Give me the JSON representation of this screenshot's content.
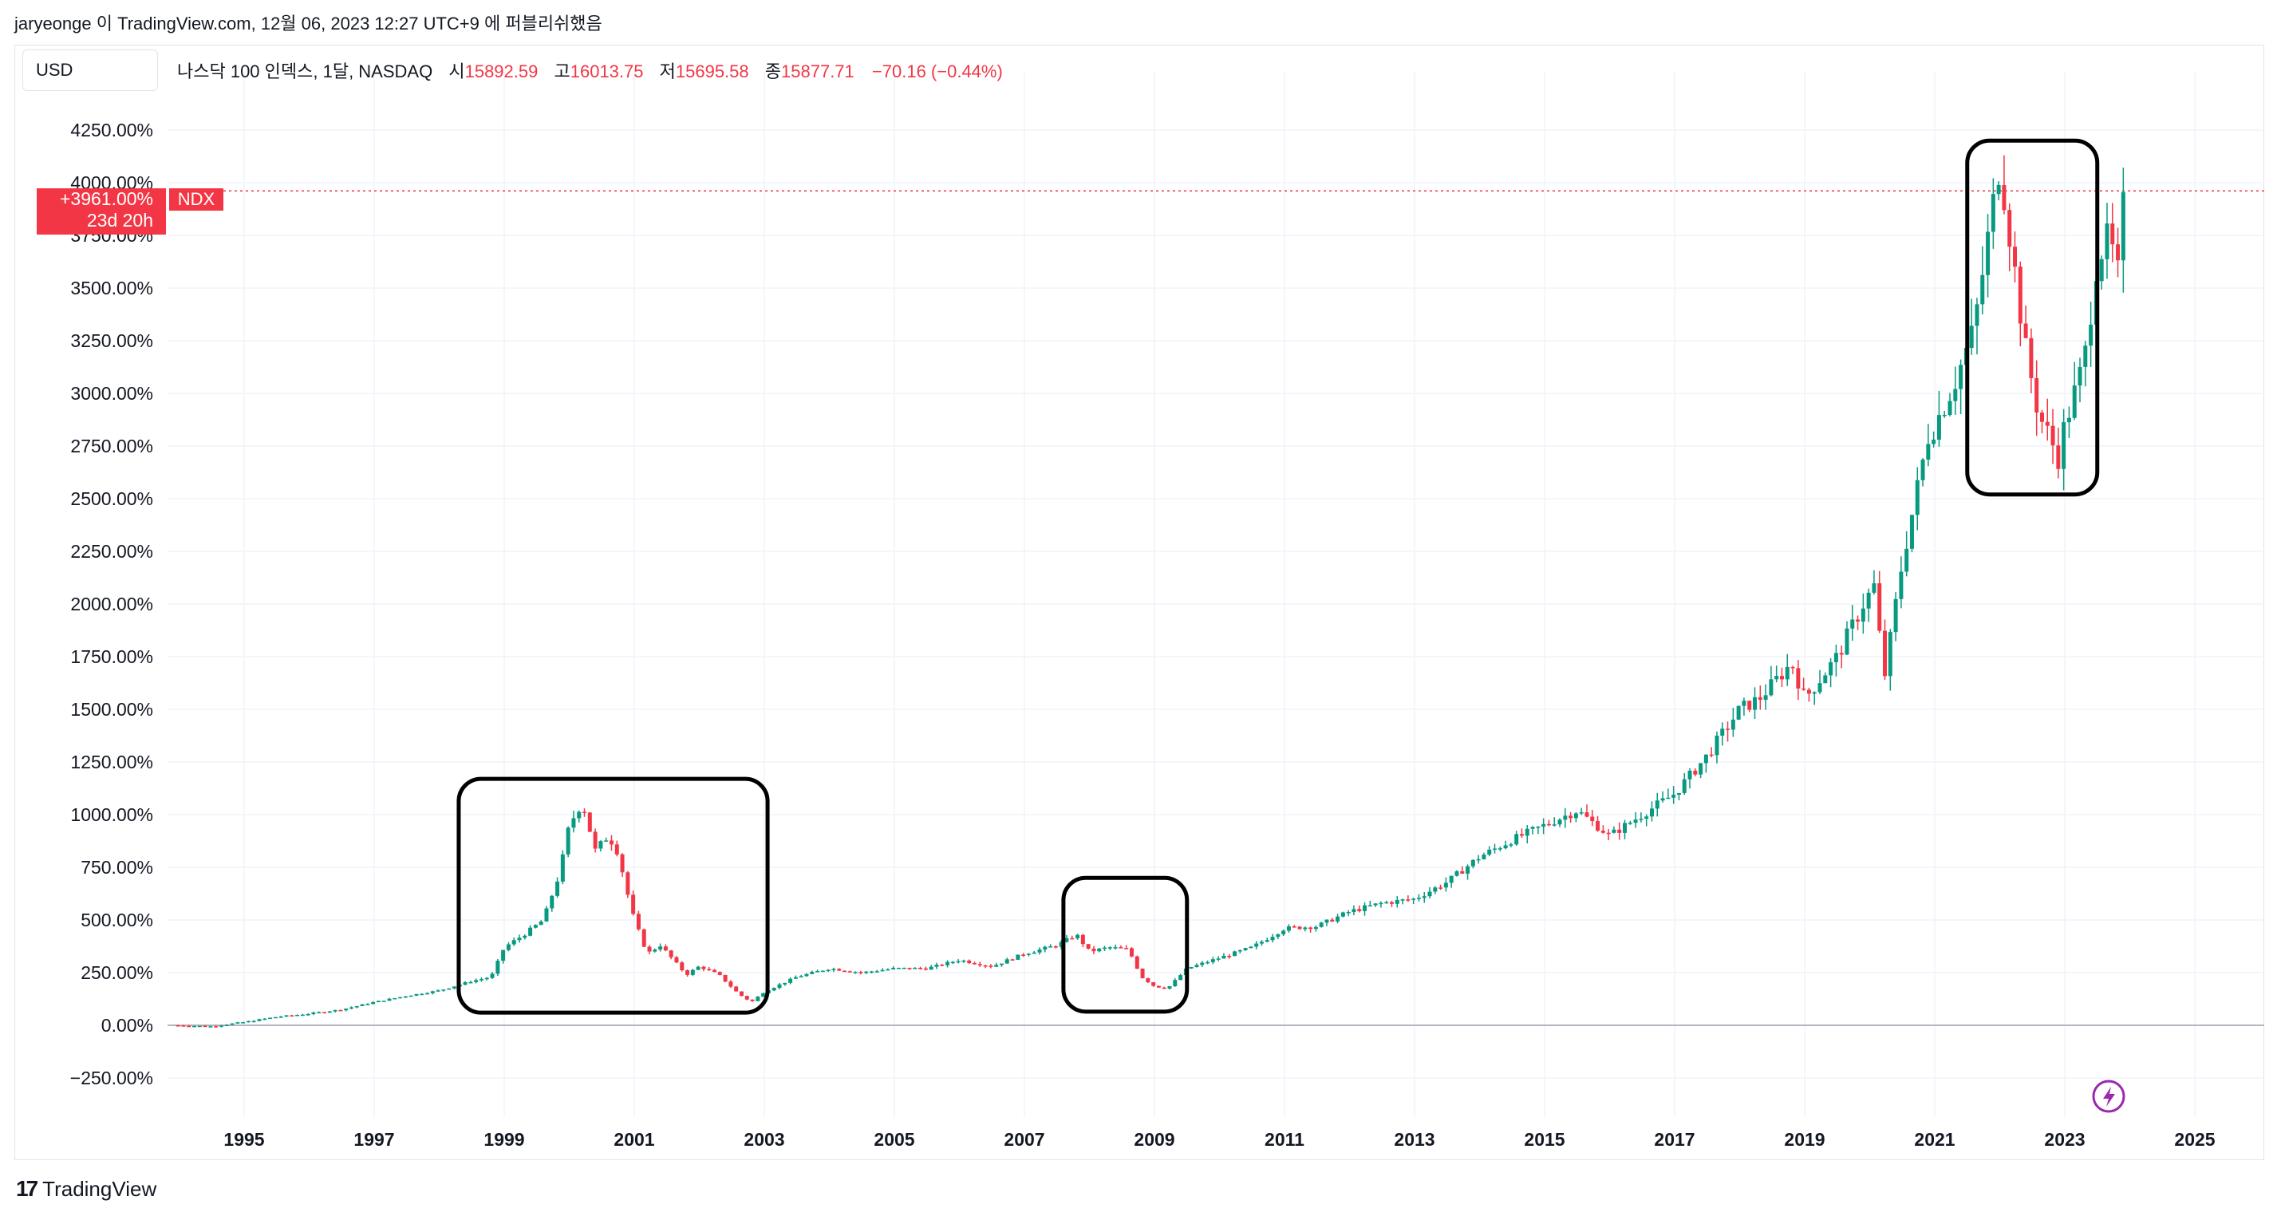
{
  "attribution": "jaryeonge 이 TradingView.com, 12월 06, 2023 12:27 UTC+9 에 퍼블리쉬했음",
  "currency_label": "USD",
  "legend": {
    "title": "나스닥 100 인덱스, 1달, NASDAQ",
    "open_label": "시",
    "open": "15892.59",
    "high_label": "고",
    "high": "16013.75",
    "low_label": "저",
    "low": "15695.58",
    "close_label": "종",
    "close": "15877.71",
    "change": "−70.16 (−0.44%)"
  },
  "price_tag": {
    "value": "+3961.00%",
    "countdown": "23d 20h",
    "symbol": "NDX"
  },
  "footer": {
    "logo_mark": "17",
    "brand": "TradingView"
  },
  "colors": {
    "up": "#089981",
    "down": "#f23645",
    "grid": "#f0f3fa",
    "box": "#000000",
    "accent": "#9c27b0"
  },
  "icons": {
    "flash": "flash-icon",
    "logo": "tradingview-logo-icon"
  },
  "chart_data": {
    "type": "candlestick",
    "scale": "percentage",
    "x_range": [
      1993.8,
      2026.0
    ],
    "y_range": [
      -350,
      4350
    ],
    "x_ticks": [
      "1995",
      "1997",
      "1999",
      "2001",
      "2003",
      "2005",
      "2007",
      "2009",
      "2011",
      "2013",
      "2015",
      "2017",
      "2019",
      "2021",
      "2023",
      "2025"
    ],
    "y_ticks": [
      "−250.00%",
      "0.00%",
      "250.00%",
      "500.00%",
      "750.00%",
      "1000.00%",
      "1250.00%",
      "1500.00%",
      "1750.00%",
      "2000.00%",
      "2250.00%",
      "2500.00%",
      "2750.00%",
      "3000.00%",
      "3250.00%",
      "3500.00%",
      "3750.00%",
      "4000.00%",
      "4250.00%"
    ],
    "last_value": 3961,
    "series_points": [
      [
        1993.9,
        0
      ],
      [
        1994.5,
        -5
      ],
      [
        1995.0,
        15
      ],
      [
        1995.5,
        40
      ],
      [
        1996.0,
        55
      ],
      [
        1996.5,
        75
      ],
      [
        1997.0,
        110
      ],
      [
        1997.5,
        140
      ],
      [
        1998.0,
        165
      ],
      [
        1998.5,
        210
      ],
      [
        1998.8,
        230
      ],
      [
        1999.0,
        370
      ],
      [
        1999.3,
        430
      ],
      [
        1999.6,
        500
      ],
      [
        1999.85,
        720
      ],
      [
        2000.0,
        950
      ],
      [
        2000.2,
        1060
      ],
      [
        2000.4,
        830
      ],
      [
        2000.6,
        900
      ],
      [
        2000.75,
        820
      ],
      [
        2000.9,
        620
      ],
      [
        2001.0,
        500
      ],
      [
        2001.2,
        340
      ],
      [
        2001.4,
        380
      ],
      [
        2001.6,
        310
      ],
      [
        2001.8,
        240
      ],
      [
        2002.0,
        280
      ],
      [
        2002.3,
        240
      ],
      [
        2002.6,
        150
      ],
      [
        2002.8,
        110
      ],
      [
        2003.0,
        160
      ],
      [
        2003.5,
        230
      ],
      [
        2004.0,
        270
      ],
      [
        2004.5,
        250
      ],
      [
        2005.0,
        270
      ],
      [
        2005.5,
        270
      ],
      [
        2006.0,
        310
      ],
      [
        2006.5,
        280
      ],
      [
        2007.0,
        340
      ],
      [
        2007.5,
        380
      ],
      [
        2007.8,
        430
      ],
      [
        2008.0,
        350
      ],
      [
        2008.3,
        370
      ],
      [
        2008.6,
        360
      ],
      [
        2008.8,
        230
      ],
      [
        2009.0,
        185
      ],
      [
        2009.2,
        175
      ],
      [
        2009.5,
        270
      ],
      [
        2010.0,
        320
      ],
      [
        2010.5,
        370
      ],
      [
        2011.0,
        460
      ],
      [
        2011.5,
        470
      ],
      [
        2012.0,
        540
      ],
      [
        2012.5,
        580
      ],
      [
        2013.0,
        600
      ],
      [
        2013.5,
        680
      ],
      [
        2014.0,
        800
      ],
      [
        2014.5,
        880
      ],
      [
        2015.0,
        950
      ],
      [
        2015.5,
        1020
      ],
      [
        2016.0,
        900
      ],
      [
        2016.5,
        1000
      ],
      [
        2017.0,
        1100
      ],
      [
        2017.5,
        1280
      ],
      [
        2018.0,
        1500
      ],
      [
        2018.3,
        1550
      ],
      [
        2018.8,
        1720
      ],
      [
        2019.0,
        1550
      ],
      [
        2019.5,
        1750
      ],
      [
        2019.9,
        2000
      ],
      [
        2020.1,
        2100
      ],
      [
        2020.2,
        1600
      ],
      [
        2020.5,
        2200
      ],
      [
        2020.7,
        2500
      ],
      [
        2020.9,
        2800
      ],
      [
        2021.0,
        2850
      ],
      [
        2021.3,
        3050
      ],
      [
        2021.6,
        3300
      ],
      [
        2021.9,
        3900
      ],
      [
        2022.0,
        4100
      ],
      [
        2022.2,
        3650
      ],
      [
        2022.4,
        3200
      ],
      [
        2022.6,
        2900
      ],
      [
        2022.75,
        2800
      ],
      [
        2022.9,
        2700
      ],
      [
        2023.0,
        2850
      ],
      [
        2023.3,
        3150
      ],
      [
        2023.5,
        3650
      ],
      [
        2023.7,
        3750
      ],
      [
        2023.8,
        3500
      ],
      [
        2023.9,
        3880
      ],
      [
        2023.95,
        3961
      ]
    ],
    "annotations": [
      {
        "kind": "rounded-box",
        "x": [
          1998.3,
          2003.05
        ],
        "y": [
          60,
          1170
        ]
      },
      {
        "kind": "rounded-box",
        "x": [
          2007.6,
          2009.5
        ],
        "y": [
          65,
          700
        ]
      },
      {
        "kind": "rounded-box",
        "x": [
          2021.5,
          2023.5
        ],
        "y": [
          2520,
          4200
        ]
      }
    ]
  }
}
